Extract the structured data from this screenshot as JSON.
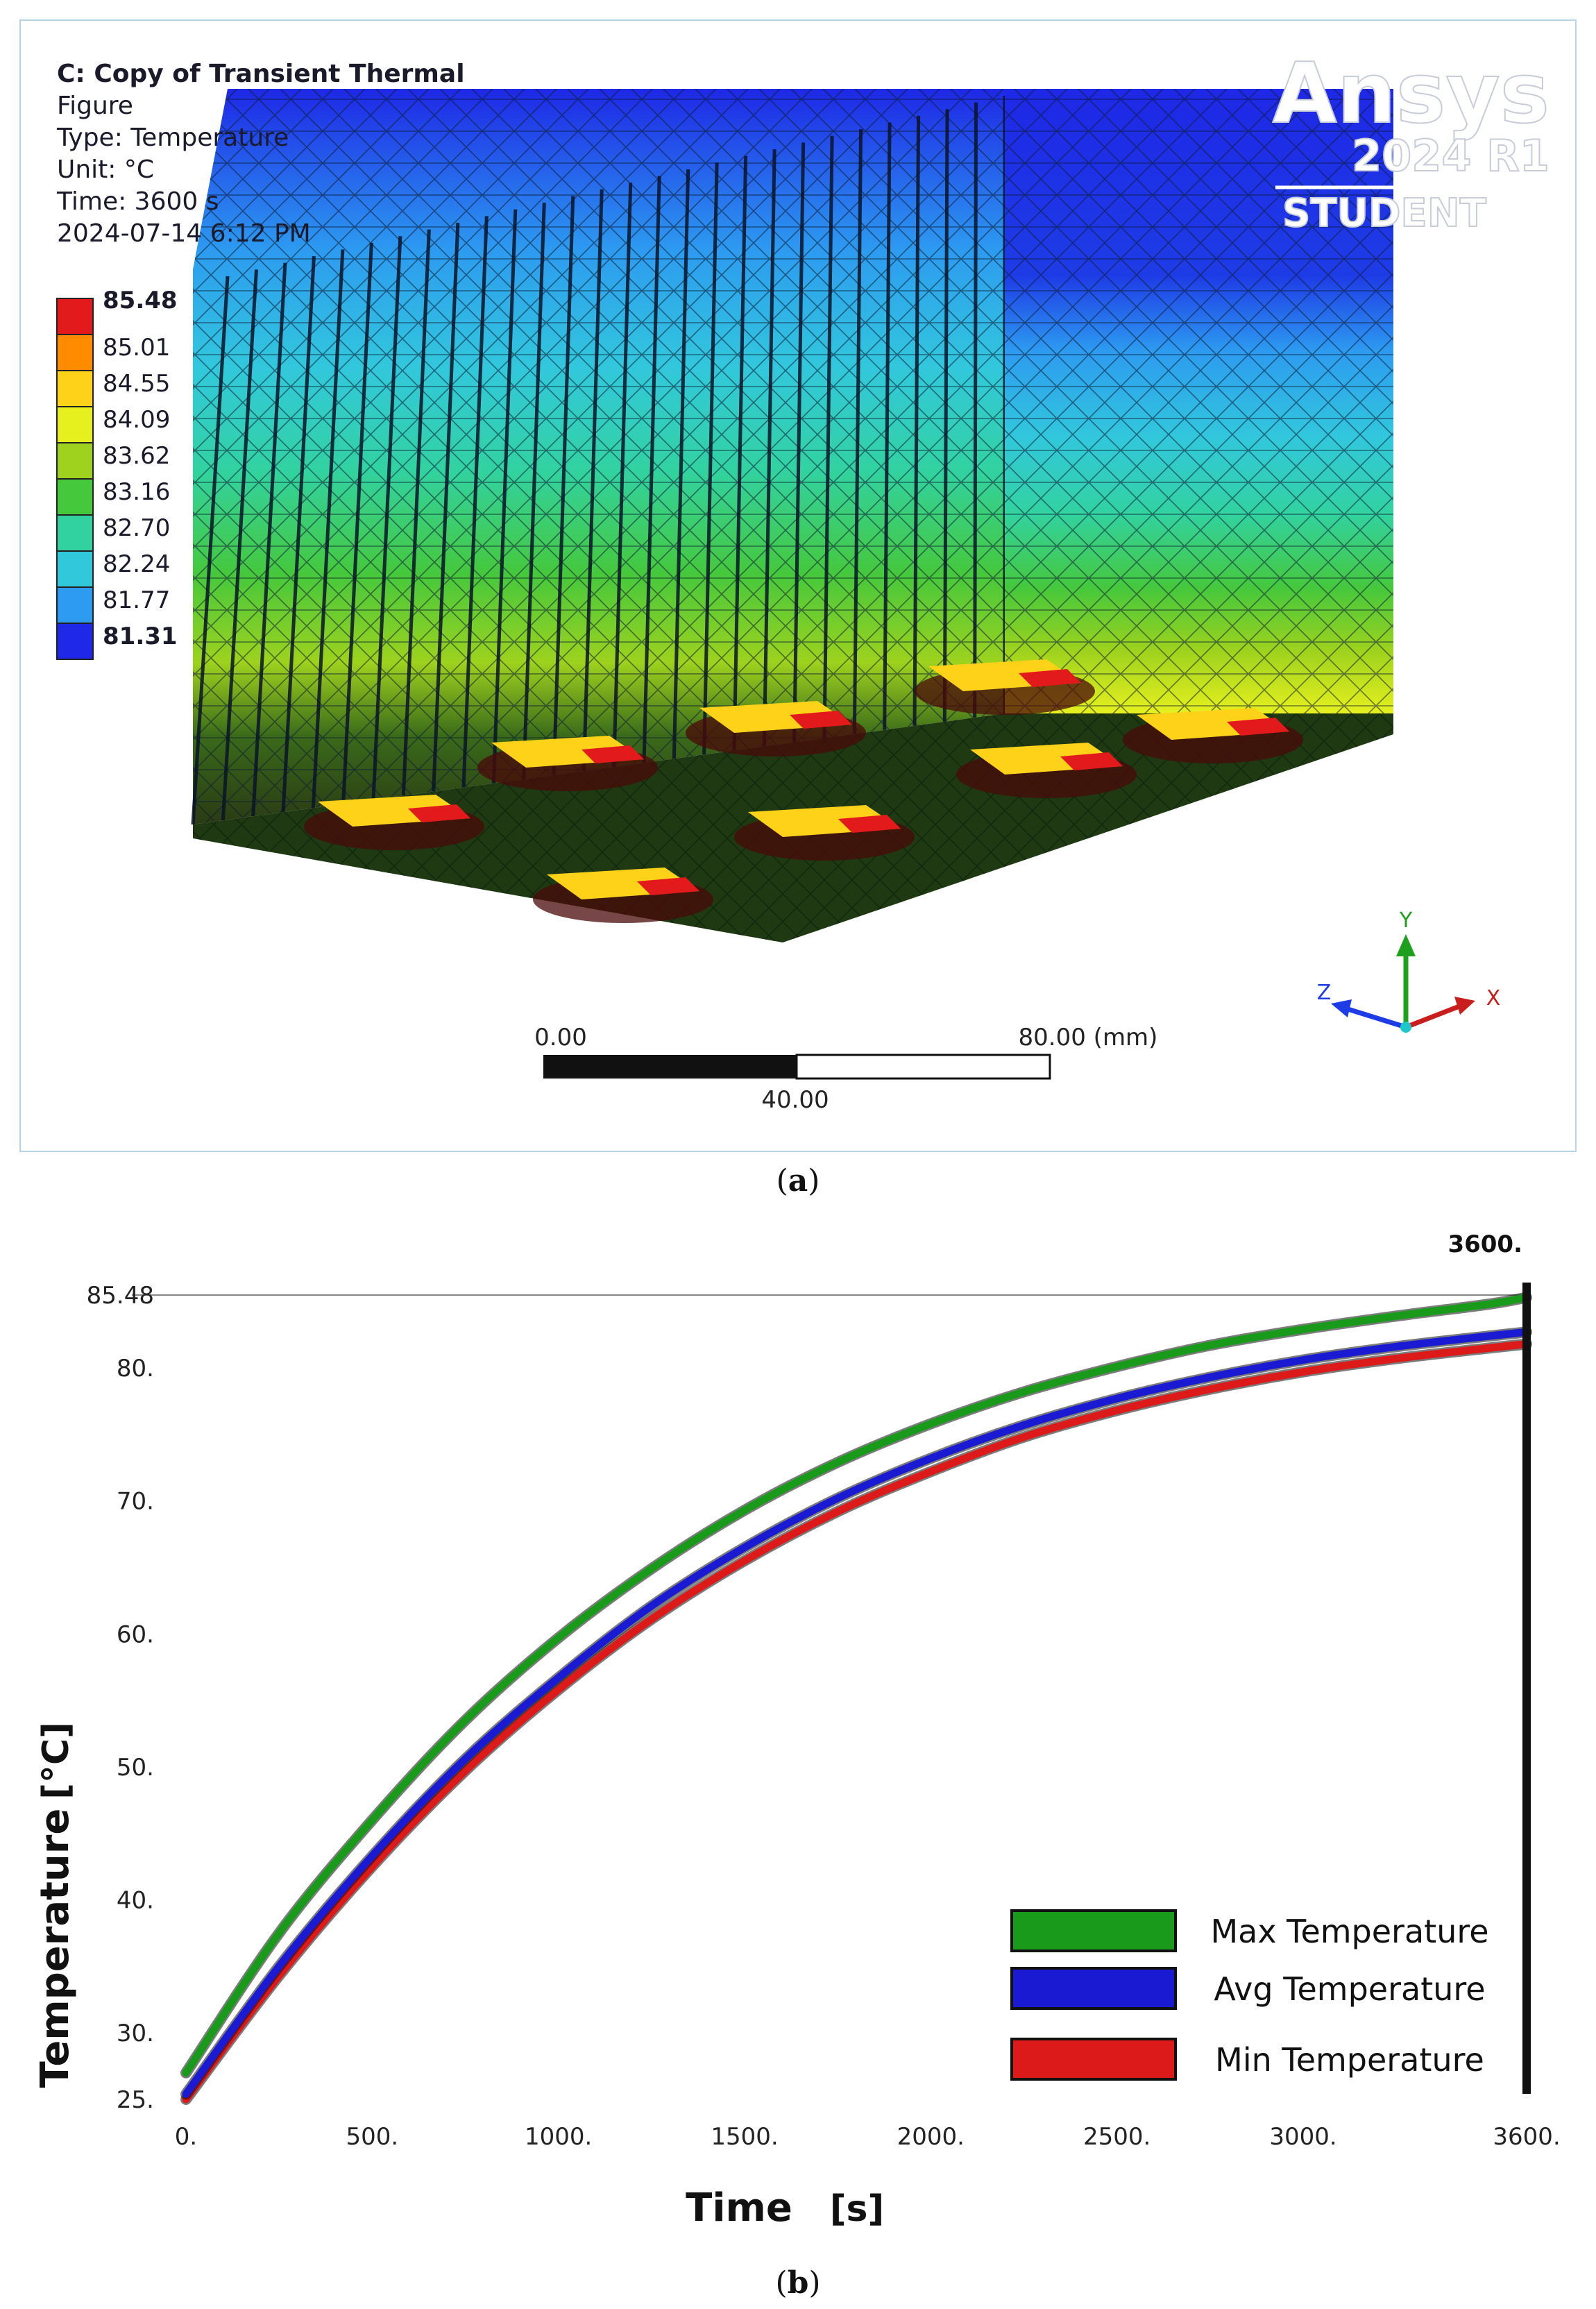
{
  "panel_a": {
    "info": [
      "C: Copy of Transient Thermal",
      "Figure",
      "Type: Temperature",
      "Unit: °C",
      "Time: 3600 s",
      "2024-07-14 6:12 PM"
    ],
    "legend_values": [
      "85.48",
      "85.01",
      "84.55",
      "84.09",
      "83.62",
      "83.16",
      "82.70",
      "82.24",
      "81.77",
      "81.31"
    ],
    "legend_colors": [
      "#e31a1c",
      "#ff8c00",
      "#ffd21a",
      "#e6f01e",
      "#9ed21e",
      "#46c83c",
      "#32d2a0",
      "#32c8dc",
      "#2d9bf0",
      "#1e28e6"
    ],
    "brand": {
      "name": "Ansys",
      "version": "2024 R1",
      "edition": "STUDENT"
    },
    "scale_bar": {
      "left": "0.00",
      "right": "80.00 (mm)",
      "mid": "40.00"
    },
    "triad": {
      "y": "Y",
      "z": "Z",
      "x": "X"
    },
    "caption_label": "a"
  },
  "panel_b": {
    "marker_label": "3600.",
    "caption_label": "b"
  },
  "chart_data": {
    "type": "line",
    "xlabel": "Time",
    "xunit": "[s]",
    "ylabel": "Temperature",
    "yunit": "[°C]",
    "xlim": [
      0,
      3600
    ],
    "ylim": [
      25,
      85.48
    ],
    "xticks": [
      0,
      500,
      1000,
      1500,
      2000,
      2500,
      3000,
      3600
    ],
    "xtick_labels": [
      "0.",
      "500.",
      "1000.",
      "1500.",
      "2000.",
      "2500.",
      "3000.",
      "3600."
    ],
    "yticks": [
      25,
      30,
      40,
      50,
      60,
      70,
      80,
      85.48
    ],
    "ytick_labels": [
      "25.",
      "30.",
      "40.",
      "50.",
      "60.",
      "70.",
      "80.",
      "85.48"
    ],
    "legend_position": "bottom-right",
    "series": [
      {
        "name": "Max Temperature",
        "color": "#1a9a1a",
        "x": [
          0,
          250,
          500,
          750,
          1000,
          1250,
          1500,
          1750,
          2000,
          2250,
          2500,
          2750,
          3000,
          3250,
          3500,
          3600
        ],
        "y": [
          27.0,
          37.5,
          46.0,
          53.5,
          59.7,
          64.9,
          69.3,
          72.9,
          75.8,
          78.2,
          80.1,
          81.7,
          82.9,
          83.9,
          84.8,
          85.3
        ]
      },
      {
        "name": "Avg Temperature",
        "color": "#1a1ad2",
        "x": [
          0,
          250,
          500,
          750,
          1000,
          1250,
          1500,
          1750,
          2000,
          2250,
          2500,
          2750,
          3000,
          3250,
          3500,
          3600
        ],
        "y": [
          25.4,
          35.0,
          43.3,
          50.6,
          56.7,
          62.1,
          66.5,
          70.2,
          73.2,
          75.7,
          77.7,
          79.3,
          80.6,
          81.6,
          82.4,
          82.7
        ]
      },
      {
        "name": "Min Temperature",
        "color": "#dc1a1a",
        "x": [
          0,
          250,
          500,
          750,
          1000,
          1250,
          1500,
          1750,
          2000,
          2250,
          2500,
          2750,
          3000,
          3250,
          3500,
          3600
        ],
        "y": [
          25.0,
          34.3,
          42.5,
          49.7,
          55.8,
          61.1,
          65.5,
          69.2,
          72.2,
          74.8,
          76.8,
          78.4,
          79.7,
          80.7,
          81.5,
          81.8
        ]
      }
    ]
  }
}
